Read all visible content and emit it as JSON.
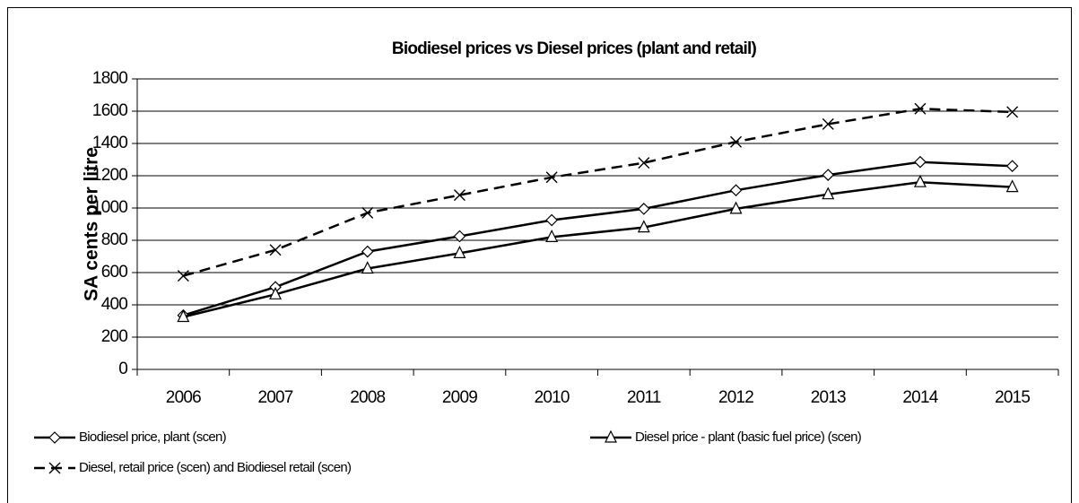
{
  "chart_data": {
    "type": "line",
    "title": "Biodiesel prices vs Diesel prices  (plant and retail)",
    "y_label": "SA cents per litre",
    "categories": [
      "2006",
      "2007",
      "2008",
      "2009",
      "2010",
      "2011",
      "2012",
      "2013",
      "2014",
      "2015"
    ],
    "series": [
      {
        "name": "Biodiesel price, plant (scen)",
        "color": "#000000",
        "marker": "diamond",
        "dashed": false,
        "values": [
          335,
          510,
          730,
          825,
          925,
          995,
          1110,
          1205,
          1285,
          1260
        ]
      },
      {
        "name": "Diesel price - plant (basic fuel price)  (scen)",
        "color": "#000000",
        "marker": "triangle",
        "dashed": false,
        "values": [
          325,
          465,
          625,
          720,
          820,
          880,
          995,
          1085,
          1160,
          1130
        ]
      },
      {
        "name": "Diesel, retail price (scen) and Biodiesel retail (scen)",
        "color": "#000000",
        "marker": "x",
        "dashed": true,
        "values": [
          580,
          740,
          970,
          1080,
          1190,
          1280,
          1410,
          1520,
          1615,
          1595
        ]
      }
    ],
    "ylim": [
      0,
      1800
    ],
    "yticks": [
      0,
      200,
      400,
      600,
      800,
      1000,
      1200,
      1400,
      1600,
      1800
    ],
    "grid": true,
    "legend": "bottom"
  }
}
